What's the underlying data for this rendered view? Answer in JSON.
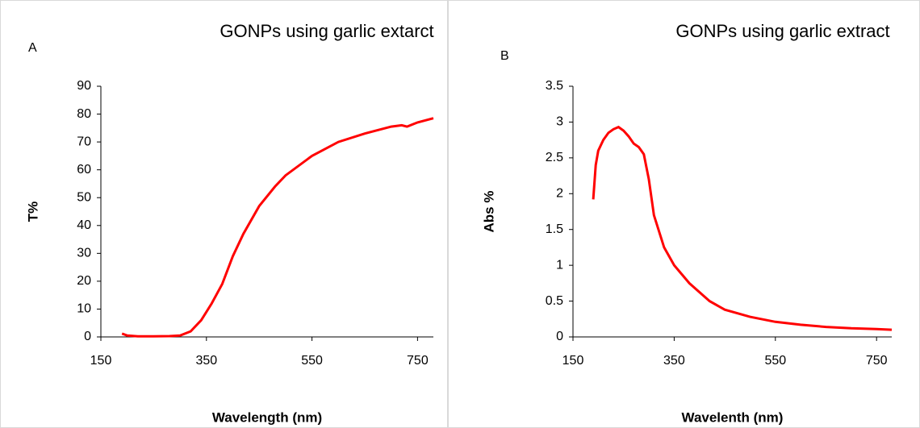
{
  "chart_data": [
    {
      "type": "line",
      "panel_label": "A",
      "title": "GONPs using garlic extarct",
      "x_label": "Wavelength (nm)",
      "y_label": "T%",
      "color": "#ff0000",
      "grid": false,
      "x": [
        190,
        200,
        220,
        250,
        280,
        300,
        320,
        340,
        360,
        380,
        400,
        420,
        450,
        480,
        500,
        550,
        600,
        650,
        700,
        720,
        730,
        750,
        780
      ],
      "values": [
        1.2,
        0.5,
        0.2,
        0.2,
        0.3,
        0.5,
        2,
        6,
        12,
        19,
        29,
        37,
        47,
        54,
        58,
        65,
        70,
        73,
        75.5,
        76,
        75.5,
        77,
        78.5
      ],
      "xlim": [
        150,
        780
      ],
      "xticks": [
        150,
        350,
        550,
        750
      ],
      "ylim": [
        0,
        90
      ],
      "yticks": [
        0,
        10,
        20,
        30,
        40,
        50,
        60,
        70,
        80,
        90
      ]
    },
    {
      "type": "line",
      "panel_label": "B",
      "title": "GONPs using garlic extract",
      "x_label": "Wavelenth  (nm)",
      "y_label": "Abs %",
      "color": "#ff0000",
      "grid": false,
      "x": [
        190,
        195,
        200,
        210,
        220,
        230,
        240,
        250,
        260,
        270,
        280,
        290,
        300,
        310,
        330,
        350,
        380,
        420,
        450,
        500,
        550,
        600,
        650,
        700,
        750,
        780
      ],
      "values": [
        1.92,
        2.4,
        2.6,
        2.75,
        2.85,
        2.9,
        2.93,
        2.88,
        2.8,
        2.7,
        2.65,
        2.55,
        2.2,
        1.7,
        1.25,
        1.0,
        0.75,
        0.5,
        0.38,
        0.28,
        0.21,
        0.17,
        0.14,
        0.12,
        0.11,
        0.1
      ],
      "xlim": [
        150,
        780
      ],
      "xticks": [
        150,
        350,
        550,
        750
      ],
      "ylim": [
        0,
        3.5
      ],
      "yticks": [
        0,
        0.5,
        1,
        1.5,
        2,
        2.5,
        3,
        3.5
      ]
    }
  ]
}
